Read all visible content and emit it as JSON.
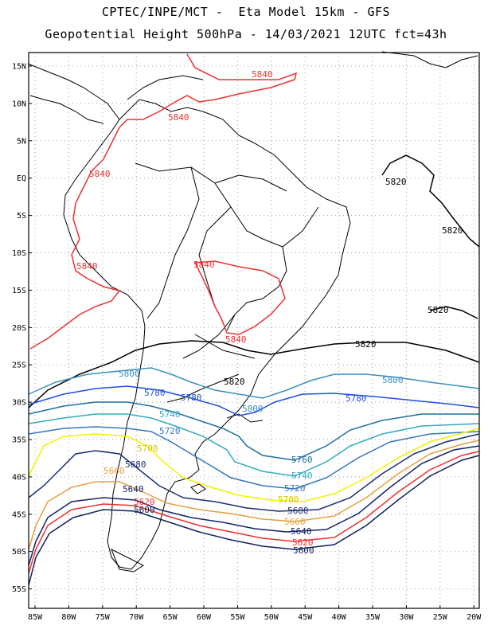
{
  "title": {
    "line1": "CPTEC/INPE/MCT -  Eta Model 15km - GFS",
    "line2": "Geopotential Height 500hPa - 14/03/2021 12UTC fct=43h"
  },
  "axes": {
    "lat_labels": [
      "15N",
      "10N",
      "5N",
      "EQ",
      "5S",
      "10S",
      "15S",
      "20S",
      "25S",
      "30S",
      "35S",
      "40S",
      "45S",
      "50S",
      "55S"
    ],
    "lon_labels": [
      "85W",
      "80W",
      "75W",
      "70W",
      "65W",
      "60W",
      "55W",
      "50W",
      "45W",
      "40W",
      "35W",
      "30W",
      "25W",
      "20W"
    ]
  },
  "contours": [
    {
      "value": "5840",
      "color": "#ee3030"
    },
    {
      "value": "5820",
      "color": "#000000"
    },
    {
      "value": "5800",
      "color": "#3a8fbf"
    },
    {
      "value": "5780",
      "color": "#1f4fe0"
    },
    {
      "value": "5760",
      "color": "#1f6f9f"
    },
    {
      "value": "5740",
      "color": "#33aabb"
    },
    {
      "value": "5720",
      "color": "#3377bb"
    },
    {
      "value": "5700",
      "color": "#f2f200"
    },
    {
      "value": "5680",
      "color": "#1a2f70"
    },
    {
      "value": "5660",
      "color": "#e6a040"
    },
    {
      "value": "5640",
      "color": "#13236a"
    },
    {
      "value": "5620",
      "color": "#ee3030"
    },
    {
      "value": "5600",
      "color": "#10205a"
    }
  ],
  "labels": {
    "c5840_a": "5840",
    "c5840_b": "5840",
    "c5840_c": "5840",
    "c5840_d": "5840",
    "c5840_e": "5840",
    "c5840_f": "5840",
    "c5820_a": "5820",
    "c5820_b": "5820",
    "c5820_c": "5820",
    "c5820_d": "5820",
    "c5820_e": "5820",
    "c5800_a": "5800",
    "c5800_b": "5800",
    "c5800_c": "5800",
    "c5780_a": "5780",
    "c5780_b": "5780",
    "c5780_c": "5780",
    "c5760_a": "5760",
    "c5740_a": "5740",
    "c5740_b": "5740",
    "c5720_a": "5720",
    "c5720_b": "5720",
    "c5700_a": "5700",
    "c5700_b": "5700",
    "c5680_a": "5680",
    "c5680_b": "5680",
    "c5660_a": "5660",
    "c5660_b": "5660",
    "c5640_a": "5640",
    "c5640_b": "5640",
    "c5620_a": "5620",
    "c5620_b": "5620",
    "c5600_a": "5600",
    "c5600_b": "5600"
  }
}
